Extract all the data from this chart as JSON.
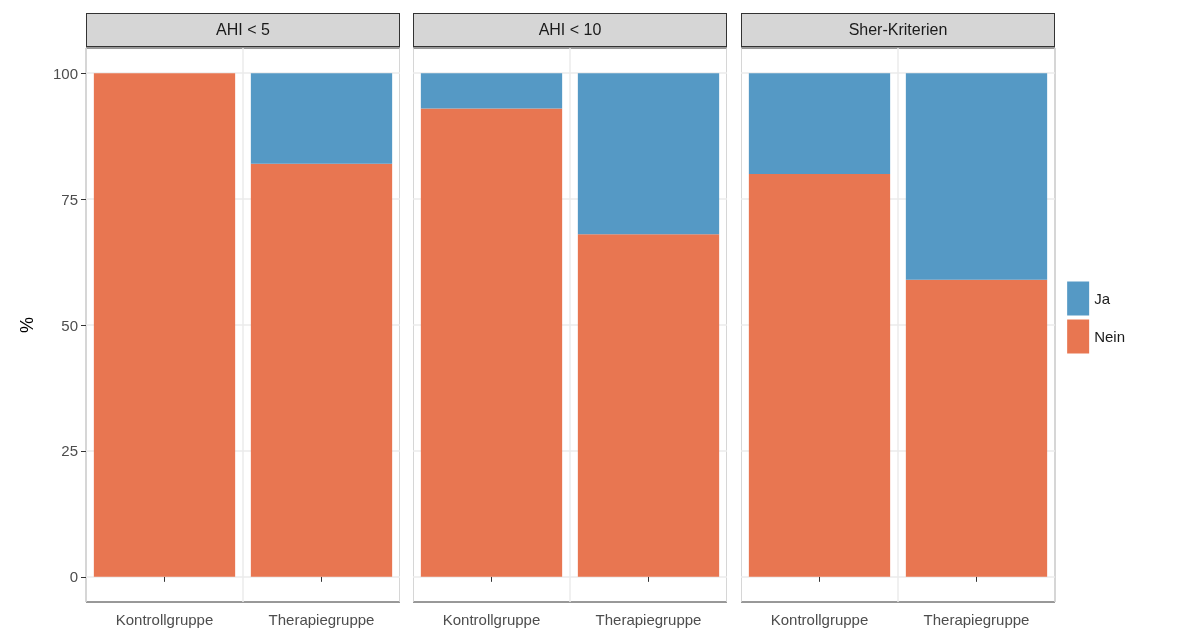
{
  "chart_data": [
    {
      "type": "bar",
      "title": "AHI < 5",
      "ylabel": "%",
      "categories": [
        "Kontrollgruppe",
        "Therapiegruppe"
      ],
      "stacked": true,
      "series": [
        {
          "color": "#e87651",
          "values": [
            100,
            82
          ]
        },
        {
          "color": "#5599c5",
          "values": [
            0,
            18
          ]
        }
      ],
      "ylim": [
        -5,
        105
      ],
      "yticks": [
        0,
        25,
        50,
        75,
        100
      ],
      "grid": true
    },
    {
      "type": "bar",
      "title": "AHI < 10",
      "categories": [
        "Kontrollgruppe",
        "Therapiegruppe"
      ],
      "stacked": true,
      "series": [
        {
          "color": "#e87651",
          "values": [
            93,
            68
          ]
        },
        {
          "color": "#5599c5",
          "values": [
            7,
            32
          ]
        }
      ],
      "ylim": [
        -5,
        105
      ],
      "yticks": [
        0,
        25,
        50,
        75,
        100
      ],
      "grid": true,
      "tick_labels": "x"
    },
    {
      "type": "bar",
      "title": "Sher-Kriterien",
      "categories": [
        "Kontrollgruppe",
        "Therapiegruppe"
      ],
      "stacked": true,
      "series": [
        {
          "name": "Nein",
          "color": "#e87651",
          "values": [
            80,
            59
          ]
        },
        {
          "name": "Ja",
          "color": "#5599c5",
          "values": [
            20,
            41
          ]
        }
      ],
      "ylim": [
        -5,
        105
      ],
      "yticks": [
        0,
        25,
        50,
        75,
        100
      ],
      "grid": true,
      "tick_labels": "x",
      "legend": "right"
    }
  ]
}
